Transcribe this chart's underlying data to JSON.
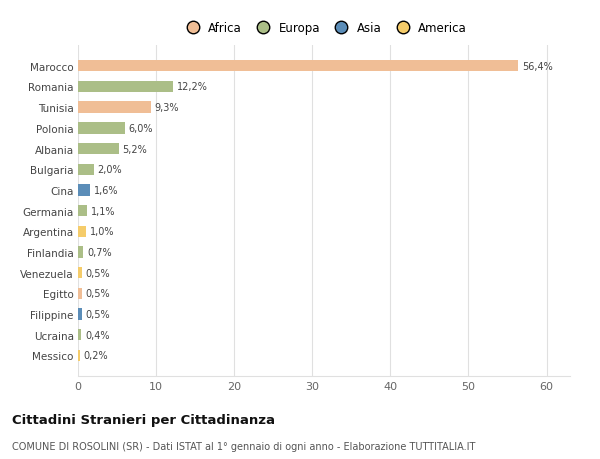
{
  "countries": [
    "Marocco",
    "Romania",
    "Tunisia",
    "Polonia",
    "Albania",
    "Bulgaria",
    "Cina",
    "Germania",
    "Argentina",
    "Finlandia",
    "Venezuela",
    "Egitto",
    "Filippine",
    "Ucraina",
    "Messico"
  ],
  "values": [
    56.4,
    12.2,
    9.3,
    6.0,
    5.2,
    2.0,
    1.6,
    1.1,
    1.0,
    0.7,
    0.5,
    0.5,
    0.5,
    0.4,
    0.2
  ],
  "labels": [
    "56,4%",
    "12,2%",
    "9,3%",
    "6,0%",
    "5,2%",
    "2,0%",
    "1,6%",
    "1,1%",
    "1,0%",
    "0,7%",
    "0,5%",
    "0,5%",
    "0,5%",
    "0,4%",
    "0,2%"
  ],
  "continents": [
    "Africa",
    "Europa",
    "Africa",
    "Europa",
    "Europa",
    "Europa",
    "Asia",
    "Europa",
    "America",
    "Europa",
    "America",
    "Africa",
    "Asia",
    "Europa",
    "America"
  ],
  "continent_colors": {
    "Africa": "#F0BE96",
    "Europa": "#ABBE87",
    "Asia": "#5B8DB8",
    "America": "#F5CC6A"
  },
  "legend_items": [
    "Africa",
    "Europa",
    "Asia",
    "America"
  ],
  "legend_colors": [
    "#F0BE96",
    "#ABBE87",
    "#5B8DB8",
    "#F5CC6A"
  ],
  "title": "Cittadini Stranieri per Cittadinanza",
  "subtitle": "COMUNE DI ROSOLINI (SR) - Dati ISTAT al 1° gennaio di ogni anno - Elaborazione TUTTITALIA.IT",
  "xlim": [
    0,
    63
  ],
  "xticks": [
    0,
    10,
    20,
    30,
    40,
    50,
    60
  ],
  "bg_color": "#ffffff",
  "grid_color": "#e0e0e0",
  "bar_height": 0.55,
  "figwidth": 6.0,
  "figheight": 4.6,
  "dpi": 100
}
